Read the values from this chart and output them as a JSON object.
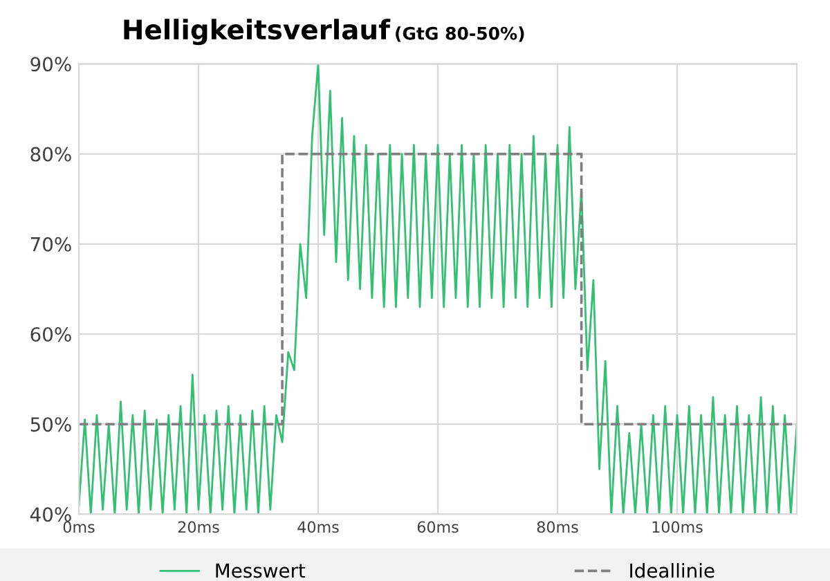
{
  "chart_data": {
    "type": "line",
    "title": "Helligkeitsverlauf",
    "subtitle": "(GtG 80-50%)",
    "x": [
      0,
      1,
      2,
      3,
      4,
      5,
      6,
      7,
      8,
      9,
      10,
      11,
      12,
      13,
      14,
      15,
      16,
      17,
      18,
      19,
      20,
      21,
      22,
      23,
      24,
      25,
      26,
      27,
      28,
      29,
      30,
      31,
      32,
      33,
      34,
      35,
      36,
      37,
      38,
      39,
      40,
      41,
      42,
      43,
      44,
      45,
      46,
      47,
      48,
      49,
      50,
      51,
      52,
      53,
      54,
      55,
      56,
      57,
      58,
      59,
      60,
      61,
      62,
      63,
      64,
      65,
      66,
      67,
      68,
      69,
      70,
      71,
      72,
      73,
      74,
      75,
      76,
      77,
      78,
      79,
      80,
      81,
      82,
      83,
      84,
      85,
      86,
      87,
      88,
      89,
      90,
      91,
      92,
      93,
      94,
      95,
      96,
      97,
      98,
      99,
      100,
      101,
      102,
      103,
      104,
      105,
      106,
      107,
      108,
      109,
      110,
      111,
      112,
      113,
      114,
      115,
      116,
      117,
      118,
      119,
      120
    ],
    "series": [
      {
        "name": "Messwert",
        "color": "#33c072",
        "line_style": "solid",
        "values": [
          41,
          50.5,
          40,
          51,
          40.5,
          50,
          40,
          52.5,
          40.5,
          51,
          40,
          51.5,
          40.5,
          50.5,
          40,
          51,
          40.5,
          52,
          40,
          55.5,
          40.5,
          51,
          40,
          51.5,
          40.5,
          52,
          40,
          51,
          40.5,
          51.5,
          40,
          52,
          40.5,
          51,
          48,
          58,
          56,
          70,
          64,
          82,
          90,
          71,
          87,
          68,
          84,
          66,
          82,
          65,
          81,
          64,
          80,
          63,
          81,
          63,
          80,
          64,
          81,
          63,
          80,
          64,
          81,
          63,
          80,
          64,
          81,
          63,
          80,
          63,
          81,
          64,
          80,
          63,
          81,
          64,
          80,
          63,
          82,
          64,
          80,
          63,
          81,
          64,
          83,
          65,
          76,
          56,
          66,
          45,
          57,
          40,
          52,
          40,
          49,
          40,
          50,
          40,
          51,
          40,
          52,
          40,
          51,
          40,
          52,
          40,
          51,
          40,
          53,
          40,
          51,
          40,
          52,
          40,
          51,
          40,
          53,
          40,
          52,
          40,
          51,
          40,
          50
        ]
      },
      {
        "name": "Ideallinie",
        "color": "#7f7f7f",
        "line_style": "dashed",
        "x": [
          0,
          34,
          34,
          84,
          84,
          120
        ],
        "values": [
          50,
          50,
          80,
          80,
          50,
          50
        ]
      }
    ],
    "xlim": [
      0,
      120
    ],
    "xticks": [
      {
        "value": 0,
        "label": "0ms"
      },
      {
        "value": 20,
        "label": "20ms"
      },
      {
        "value": 40,
        "label": "40ms"
      },
      {
        "value": 60,
        "label": "60ms"
      },
      {
        "value": 80,
        "label": "80ms"
      },
      {
        "value": 100,
        "label": "100ms"
      }
    ],
    "ylim": [
      40,
      90
    ],
    "yticks": [
      {
        "value": 40,
        "label": "40%"
      },
      {
        "value": 50,
        "label": "50%"
      },
      {
        "value": 60,
        "label": "60%"
      },
      {
        "value": 70,
        "label": "70%"
      },
      {
        "value": 80,
        "label": "80%"
      },
      {
        "value": 90,
        "label": "90%"
      }
    ],
    "grid": true,
    "legend": "bottom",
    "marker": "none"
  }
}
